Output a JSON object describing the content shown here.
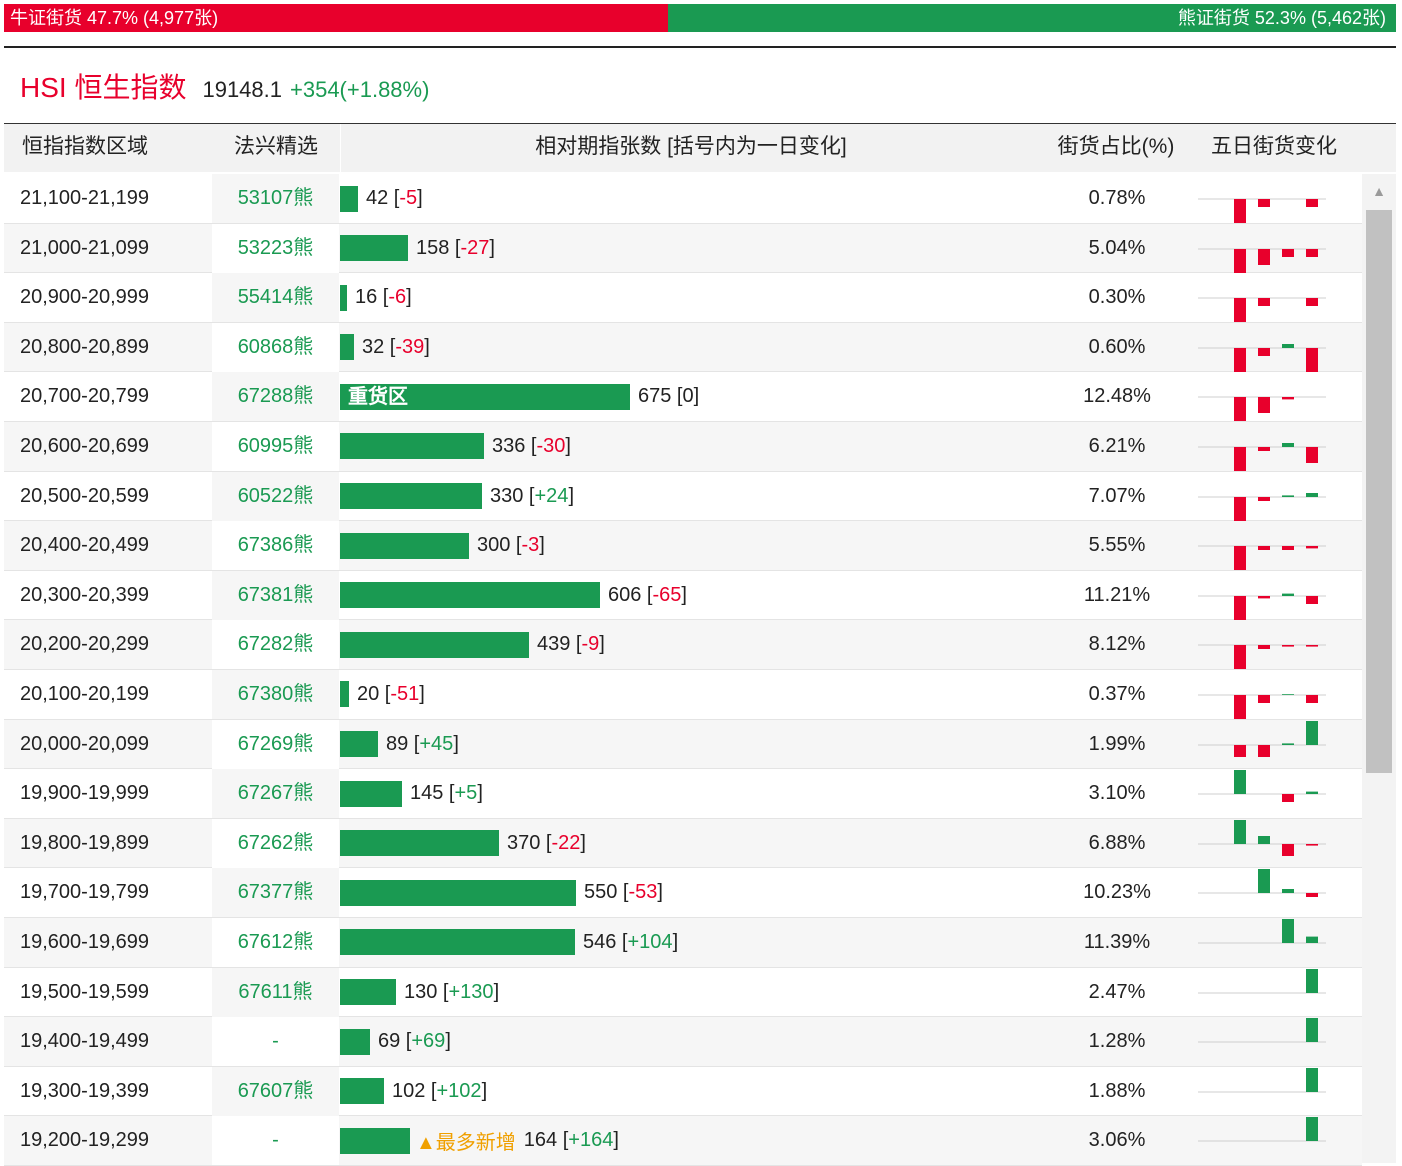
{
  "ratio": {
    "bull_label": "牛证街货 47.7% (4,977张)",
    "bull_pct": 47.7,
    "bear_label": "熊证街货 52.3% (5,462张)",
    "bear_pct": 52.3,
    "bull_color": "#e8002c",
    "bear_color": "#1a9a52"
  },
  "index": {
    "name": "HSI 恒生指数",
    "price": "19148.1",
    "change": "+354(+1.88%)"
  },
  "table": {
    "headers": {
      "range": "恒指指数区域",
      "selected": "法兴精选",
      "count": "相对期指张数 [括号内为一日变化]",
      "pct": "街货占比(%)",
      "trend": "五日街货变化"
    },
    "heavy_zone_label": "重货区",
    "most_new_label": "▲最多新增",
    "max_count": 675,
    "rows": [
      {
        "range": "21,100-21,199",
        "selected": "53107熊",
        "count": "42",
        "delta": "-5",
        "delta_sign": "neg",
        "pct": "0.78%",
        "count_value": 42,
        "trend": [
          -3,
          -1,
          0,
          -1
        ]
      },
      {
        "range": "21,000-21,099",
        "selected": "53223熊",
        "count": "158",
        "delta": "-27",
        "delta_sign": "neg",
        "pct": "5.04%",
        "count_value": 158,
        "trend": [
          -3,
          -2,
          -1,
          -1
        ]
      },
      {
        "range": "20,900-20,999",
        "selected": "55414熊",
        "count": "16",
        "delta": "-6",
        "delta_sign": "neg",
        "pct": "0.30%",
        "count_value": 16,
        "trend": [
          -3,
          -1,
          0,
          -1
        ]
      },
      {
        "range": "20,800-20,899",
        "selected": "60868熊",
        "count": "32",
        "delta": "-39",
        "delta_sign": "neg",
        "pct": "0.60%",
        "count_value": 32,
        "trend": [
          -3,
          -1,
          0.5,
          -3
        ]
      },
      {
        "range": "20,700-20,799",
        "selected": "67288熊",
        "count": "675",
        "delta": "0",
        "delta_sign": "zero",
        "pct": "12.48%",
        "count_value": 675,
        "heavy": true,
        "trend": [
          -3,
          -2,
          -0.3,
          0
        ]
      },
      {
        "range": "20,600-20,699",
        "selected": "60995熊",
        "count": "336",
        "delta": "-30",
        "delta_sign": "neg",
        "pct": "6.21%",
        "count_value": 336,
        "trend": [
          -3,
          -0.5,
          0.5,
          -2
        ]
      },
      {
        "range": "20,500-20,599",
        "selected": "60522熊",
        "count": "330",
        "delta": "+24",
        "delta_sign": "pos",
        "pct": "7.07%",
        "count_value": 330,
        "trend": [
          -3,
          -0.5,
          0.2,
          0.5
        ]
      },
      {
        "range": "20,400-20,499",
        "selected": "67386熊",
        "count": "300",
        "delta": "-3",
        "delta_sign": "neg",
        "pct": "5.55%",
        "count_value": 300,
        "trend": [
          -3,
          -0.5,
          -0.5,
          -0.3
        ]
      },
      {
        "range": "20,300-20,399",
        "selected": "67381熊",
        "count": "606",
        "delta": "-65",
        "delta_sign": "neg",
        "pct": "11.21%",
        "count_value": 606,
        "trend": [
          -3,
          -0.3,
          0.3,
          -1
        ]
      },
      {
        "range": "20,200-20,299",
        "selected": "67282熊",
        "count": "439",
        "delta": "-9",
        "delta_sign": "neg",
        "pct": "8.12%",
        "count_value": 439,
        "trend": [
          -3,
          -0.5,
          -0.2,
          -0.2
        ]
      },
      {
        "range": "20,100-20,199",
        "selected": "67380熊",
        "count": "20",
        "delta": "-51",
        "delta_sign": "neg",
        "pct": "0.37%",
        "count_value": 20,
        "trend": [
          -3,
          -1,
          0.1,
          -1
        ]
      },
      {
        "range": "20,000-20,099",
        "selected": "67269熊",
        "count": "89",
        "delta": "+45",
        "delta_sign": "pos",
        "pct": "1.99%",
        "count_value": 89,
        "trend": [
          -1.5,
          -1.5,
          0.2,
          3
        ]
      },
      {
        "range": "19,900-19,999",
        "selected": "67267熊",
        "count": "145",
        "delta": "+5",
        "delta_sign": "pos",
        "pct": "3.10%",
        "count_value": 145,
        "trend": [
          3,
          0,
          -1,
          0.3
        ]
      },
      {
        "range": "19,800-19,899",
        "selected": "67262熊",
        "count": "370",
        "delta": "-22",
        "delta_sign": "neg",
        "pct": "6.88%",
        "count_value": 370,
        "trend": [
          3,
          1,
          -1.5,
          -0.2
        ]
      },
      {
        "range": "19,700-19,799",
        "selected": "67377熊",
        "count": "550",
        "delta": "-53",
        "delta_sign": "neg",
        "pct": "10.23%",
        "count_value": 550,
        "trend": [
          0,
          3,
          0.5,
          -0.5
        ]
      },
      {
        "range": "19,600-19,699",
        "selected": "67612熊",
        "count": "546",
        "delta": "+104",
        "delta_sign": "pos",
        "pct": "11.39%",
        "count_value": 546,
        "trend": [
          0,
          0,
          3,
          0.8
        ]
      },
      {
        "range": "19,500-19,599",
        "selected": "67611熊",
        "count": "130",
        "delta": "+130",
        "delta_sign": "pos",
        "pct": "2.47%",
        "count_value": 130,
        "trend": [
          0,
          0,
          0,
          3
        ]
      },
      {
        "range": "19,400-19,499",
        "selected": "-",
        "count": "69",
        "delta": "+69",
        "delta_sign": "pos",
        "pct": "1.28%",
        "count_value": 69,
        "trend": [
          0,
          0,
          0,
          3
        ]
      },
      {
        "range": "19,300-19,399",
        "selected": "67607熊",
        "count": "102",
        "delta": "+102",
        "delta_sign": "pos",
        "pct": "1.88%",
        "count_value": 102,
        "trend": [
          0,
          0,
          0,
          3
        ]
      },
      {
        "range": "19,200-19,299",
        "selected": "-",
        "count": "164",
        "delta": "+164",
        "delta_sign": "pos",
        "pct": "3.06%",
        "count_value": 164,
        "most_new": true,
        "trend": [
          0,
          0,
          0,
          3
        ]
      }
    ]
  }
}
